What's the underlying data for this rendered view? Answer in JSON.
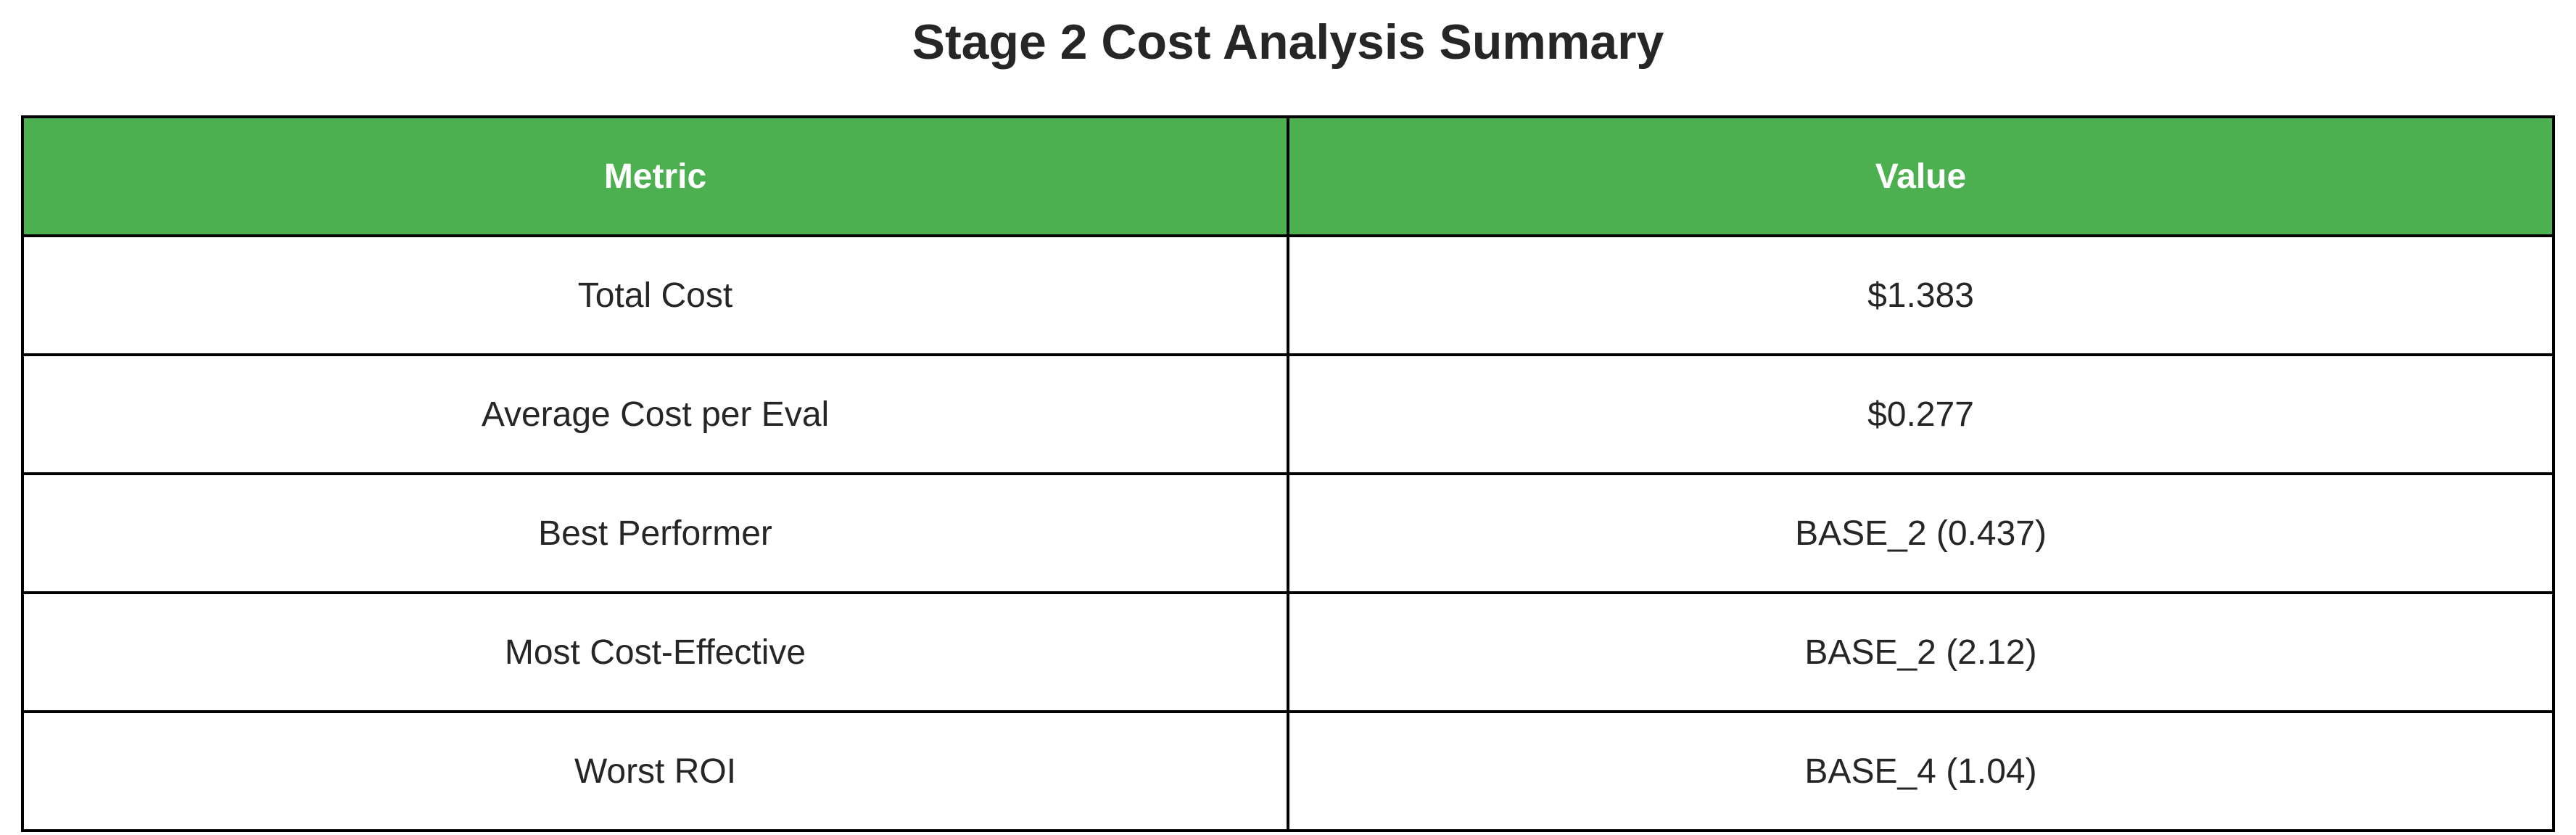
{
  "chart_data": {
    "type": "table",
    "title": "Stage 2 Cost Analysis Summary",
    "columns": [
      "Metric",
      "Value"
    ],
    "rows": [
      [
        "Total Cost",
        "$1.383"
      ],
      [
        "Average Cost per Eval",
        "$0.277"
      ],
      [
        "Best Performer",
        "BASE_2 (0.437)"
      ],
      [
        "Most Cost-Effective",
        "BASE_2 (2.12)"
      ],
      [
        "Worst ROI",
        "BASE_4 (1.04)"
      ]
    ],
    "header_color": "#4CAF50",
    "header_text_color": "#FFFFFF",
    "border_color": "#000000"
  }
}
